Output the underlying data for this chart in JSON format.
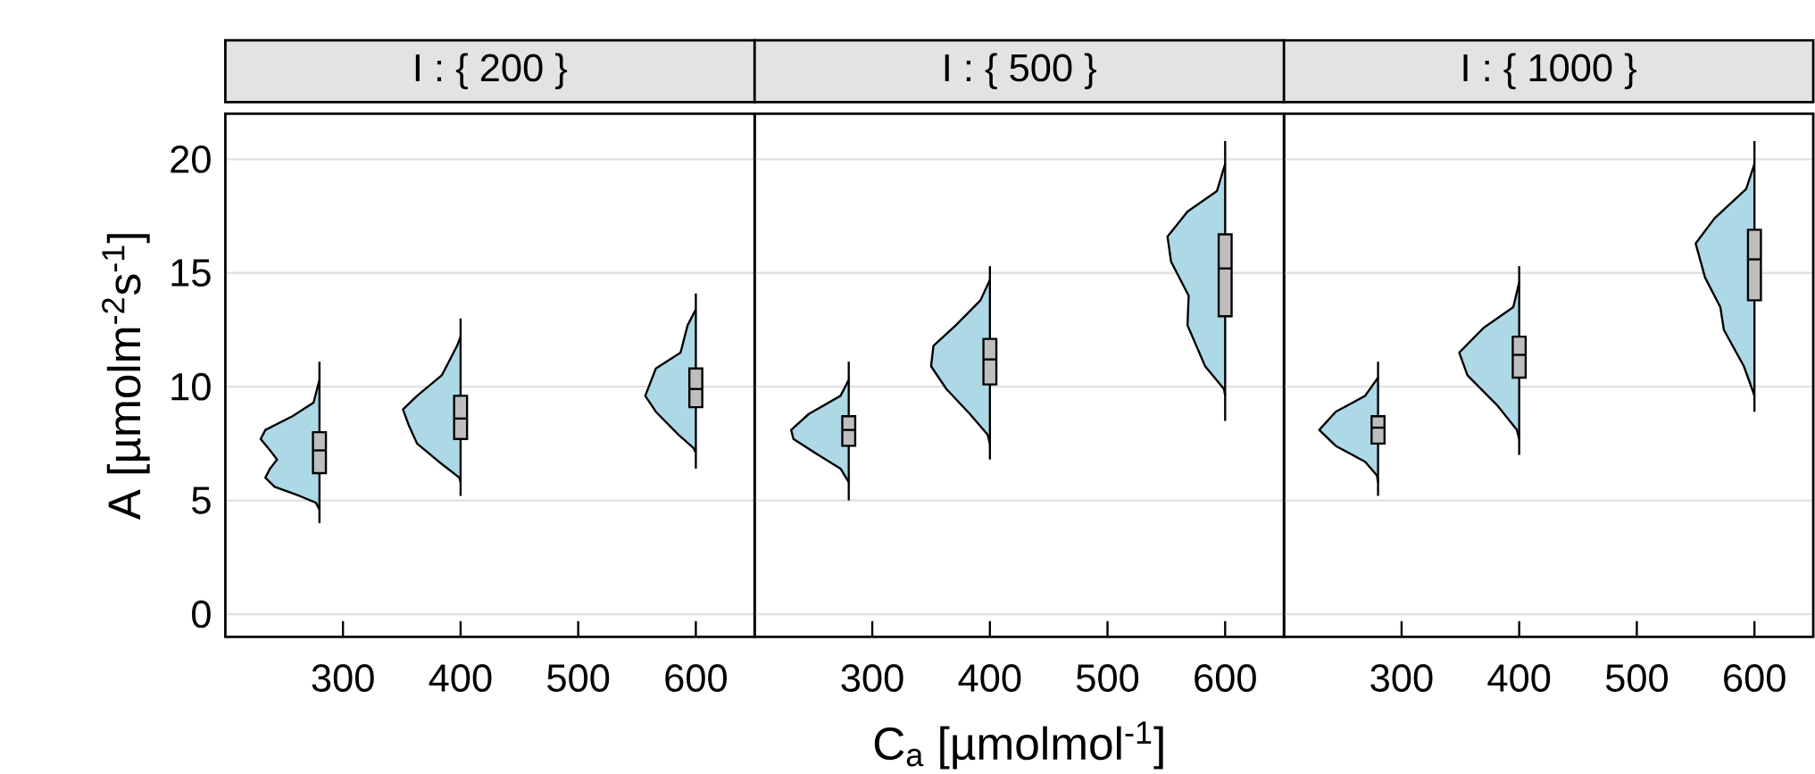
{
  "chart_data": [
    {
      "type": "box",
      "title": "I : { 200 }",
      "ylabel": "A [µmolm$^{-2}$s$^{-1}$]",
      "x": [
        280,
        400,
        600
      ],
      "xlim": [
        200,
        650
      ],
      "xticks": [
        300,
        400,
        500,
        600
      ],
      "ylim": [
        -1,
        22
      ],
      "yticks": [
        0,
        5,
        10,
        15,
        20
      ],
      "grid": "y",
      "series": [
        {
          "type": "area",
          "color": "#add8e6",
          "x": [
            280,
            275,
            257,
            234,
            230,
            238,
            244,
            238,
            234,
            242,
            263,
            277,
            280
          ],
          "values": [
            10.3,
            9.3,
            8.7,
            8.1,
            7.7,
            7.2,
            6.8,
            6.4,
            6.0,
            5.6,
            5.2,
            4.9,
            4.6
          ]
        },
        {
          "type": "area",
          "color": "#add8e6",
          "x": [
            400,
            397,
            384,
            363,
            351,
            356,
            363,
            384,
            399,
            400
          ],
          "values": [
            12.2,
            11.8,
            10.5,
            9.6,
            9.0,
            8.3,
            7.5,
            6.6,
            6.0,
            5.8
          ]
        },
        {
          "type": "area",
          "color": "#add8e6",
          "x": [
            600,
            593,
            587,
            566,
            557,
            566,
            585,
            598,
            600
          ],
          "values": [
            13.4,
            12.7,
            11.5,
            10.8,
            9.6,
            8.9,
            7.9,
            7.3,
            7.1
          ]
        },
        {
          "type": "box",
          "color": "#bebebe",
          "boxes": [
            {
              "low": 4.0,
              "q1": 6.2,
              "median": 7.2,
              "q3": 8.0,
              "high": 11.1
            },
            {
              "low": 5.2,
              "q1": 7.7,
              "median": 8.6,
              "q3": 9.6,
              "high": 13.0
            },
            {
              "low": 6.4,
              "q1": 9.1,
              "median": 9.9,
              "q3": 10.8,
              "high": 14.1
            }
          ]
        }
      ]
    },
    {
      "type": "box",
      "title": "I : { 500 }",
      "xlabel": "C$_{a}$ [µmolmol$^{-1}$]",
      "x": [
        280,
        400,
        600
      ],
      "xlim": [
        200,
        650
      ],
      "xticks": [
        300,
        400,
        500,
        600
      ],
      "ylim": [
        -1,
        22
      ],
      "yticks": [
        0,
        5,
        10,
        15,
        20
      ],
      "grid": "y",
      "tick_labels": "x",
      "series": [
        {
          "type": "area",
          "color": "#add8e6",
          "x": [
            280,
            273,
            246,
            231,
            233,
            254,
            273,
            280
          ],
          "values": [
            10.3,
            9.6,
            8.8,
            8.1,
            7.7,
            7.0,
            6.4,
            5.8
          ]
        },
        {
          "type": "area",
          "color": "#add8e6",
          "x": [
            400,
            392,
            371,
            352,
            350,
            363,
            383,
            398,
            400
          ],
          "values": [
            14.7,
            13.8,
            12.7,
            11.8,
            10.9,
            9.9,
            8.8,
            7.9,
            7.5
          ]
        },
        {
          "type": "area",
          "color": "#add8e6",
          "x": [
            600,
            593,
            568,
            551,
            554,
            569,
            568,
            583,
            599,
            600
          ],
          "values": [
            19.8,
            18.6,
            17.7,
            16.6,
            15.5,
            14.0,
            12.7,
            10.9,
            9.9,
            9.6
          ]
        },
        {
          "type": "box",
          "color": "#bebebe",
          "boxes": [
            {
              "low": 5.0,
              "q1": 7.4,
              "median": 8.1,
              "q3": 8.7,
              "high": 11.1
            },
            {
              "low": 6.8,
              "q1": 10.1,
              "median": 11.2,
              "q3": 12.1,
              "high": 15.3
            },
            {
              "low": 8.5,
              "q1": 13.1,
              "median": 15.2,
              "q3": 16.7,
              "high": 20.8
            }
          ]
        }
      ]
    },
    {
      "type": "box",
      "title": "I : { 1000 }",
      "x": [
        280,
        400,
        600
      ],
      "xlim": [
        200,
        650
      ],
      "xticks": [
        300,
        400,
        500,
        600
      ],
      "ylim": [
        -1,
        22
      ],
      "yticks": [
        0,
        5,
        10,
        15,
        20
      ],
      "grid": "y",
      "tick_labels": "x",
      "series": [
        {
          "type": "area",
          "color": "#add8e6",
          "x": [
            280,
            269,
            244,
            230,
            244,
            269,
            279,
            280
          ],
          "values": [
            10.4,
            9.6,
            8.9,
            8.1,
            7.4,
            6.7,
            6.1,
            5.8
          ]
        },
        {
          "type": "area",
          "color": "#add8e6",
          "x": [
            400,
            395,
            370,
            349,
            356,
            381,
            398,
            400
          ],
          "values": [
            14.6,
            13.5,
            12.6,
            11.5,
            10.5,
            9.2,
            8.1,
            7.7
          ]
        },
        {
          "type": "area",
          "color": "#add8e6",
          "x": [
            600,
            593,
            566,
            550,
            558,
            571,
            574,
            591,
            598,
            600
          ],
          "values": [
            19.8,
            18.7,
            17.4,
            16.3,
            14.8,
            13.5,
            12.5,
            10.9,
            9.9,
            9.6
          ]
        },
        {
          "type": "box",
          "color": "#bebebe",
          "boxes": [
            {
              "low": 5.2,
              "q1": 7.5,
              "median": 8.2,
              "q3": 8.7,
              "high": 11.1
            },
            {
              "low": 7.0,
              "q1": 10.4,
              "median": 11.4,
              "q3": 12.2,
              "high": 15.3
            },
            {
              "low": 8.9,
              "q1": 13.8,
              "median": 15.6,
              "q3": 16.9,
              "high": 20.8
            }
          ]
        }
      ]
    }
  ]
}
